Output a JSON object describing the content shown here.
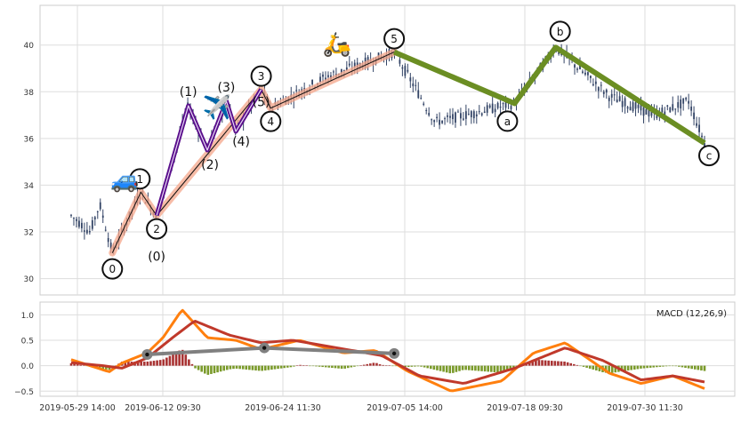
{
  "chart_data": [
    {
      "type": "candlestick",
      "panel": "price",
      "ylim": [
        29.3,
        41.7
      ],
      "yticks": [
        30,
        32,
        34,
        36,
        38,
        40
      ],
      "grid": true,
      "x_ticks": [
        "2019-05-29 14:00",
        "2019-06-12 09:30",
        "2019-06-24 11:30",
        "2019-07-05 14:00",
        "2019-07-18 09:30",
        "2019-07-30 11:30"
      ],
      "price_anchors": [
        {
          "t": 0.0,
          "y": 32.7
        },
        {
          "t": 0.03,
          "y": 32.0
        },
        {
          "t": 0.045,
          "y": 33.2
        },
        {
          "t": 0.065,
          "y": 31.1
        },
        {
          "t": 0.11,
          "y": 33.7
        },
        {
          "t": 0.135,
          "y": 32.7
        },
        {
          "t": 0.185,
          "y": 37.4
        },
        {
          "t": 0.215,
          "y": 35.5
        },
        {
          "t": 0.245,
          "y": 37.6
        },
        {
          "t": 0.26,
          "y": 36.3
        },
        {
          "t": 0.3,
          "y": 38.1
        },
        {
          "t": 0.315,
          "y": 37.3
        },
        {
          "t": 0.4,
          "y": 38.6
        },
        {
          "t": 0.51,
          "y": 39.7
        },
        {
          "t": 0.575,
          "y": 36.7
        },
        {
          "t": 0.7,
          "y": 37.5
        },
        {
          "t": 0.765,
          "y": 39.9
        },
        {
          "t": 0.85,
          "y": 37.8
        },
        {
          "t": 0.92,
          "y": 37.0
        },
        {
          "t": 0.975,
          "y": 37.6
        },
        {
          "t": 1.0,
          "y": 35.8
        }
      ],
      "wave_main": {
        "labels": [
          "0",
          "1",
          "2",
          "3",
          "4",
          "5"
        ],
        "points": [
          [
            0.065,
            31.1
          ],
          [
            0.11,
            33.7
          ],
          [
            0.135,
            32.7
          ],
          [
            0.3,
            38.1
          ],
          [
            0.315,
            37.3
          ],
          [
            0.51,
            39.7
          ]
        ],
        "color": "#f4a58a"
      },
      "wave_sub": {
        "labels": [
          "(0)",
          "(1)",
          "(2)",
          "(3)",
          "(4)",
          "(5)"
        ],
        "points": [
          [
            0.135,
            32.7
          ],
          [
            0.185,
            37.4
          ],
          [
            0.215,
            35.5
          ],
          [
            0.245,
            37.6
          ],
          [
            0.26,
            36.3
          ],
          [
            0.3,
            38.1
          ]
        ],
        "color": "#5a0f8c"
      },
      "wave_correction": {
        "labels": [
          "a",
          "b",
          "c"
        ],
        "points": [
          [
            0.51,
            39.7
          ],
          [
            0.7,
            37.5
          ],
          [
            0.765,
            39.9
          ],
          [
            1.0,
            35.8
          ]
        ],
        "color": "#6b8e23"
      },
      "emojis": [
        {
          "icon": "car-icon",
          "glyph": "🚙",
          "t": 0.085,
          "y": 33.9
        },
        {
          "icon": "airplane-icon",
          "glyph": "✈️",
          "t": 0.23,
          "y": 37.0
        },
        {
          "icon": "scooter-icon",
          "glyph": "🛵",
          "t": 0.42,
          "y": 39.7
        }
      ],
      "colors": {
        "candle": "#334466"
      }
    },
    {
      "type": "macd",
      "panel": "indicator",
      "legend_text": "MACD (12,26,9)",
      "ylim": [
        -0.6,
        1.25
      ],
      "yticks": [
        -0.5,
        0.0,
        0.5,
        1.0
      ],
      "ytick_labels": [
        "−0.5",
        "0.0",
        "0.5",
        "1.0"
      ],
      "macd_anchors": [
        {
          "t": 0.0,
          "y": 0.12
        },
        {
          "t": 0.03,
          "y": 0.0
        },
        {
          "t": 0.06,
          "y": -0.12
        },
        {
          "t": 0.08,
          "y": 0.05
        },
        {
          "t": 0.12,
          "y": 0.25
        },
        {
          "t": 0.145,
          "y": 0.55
        },
        {
          "t": 0.175,
          "y": 1.1
        },
        {
          "t": 0.215,
          "y": 0.55
        },
        {
          "t": 0.26,
          "y": 0.5
        },
        {
          "t": 0.3,
          "y": 0.32
        },
        {
          "t": 0.36,
          "y": 0.5
        },
        {
          "t": 0.43,
          "y": 0.25
        },
        {
          "t": 0.48,
          "y": 0.3
        },
        {
          "t": 0.53,
          "y": -0.1
        },
        {
          "t": 0.6,
          "y": -0.5
        },
        {
          "t": 0.68,
          "y": -0.3
        },
        {
          "t": 0.73,
          "y": 0.25
        },
        {
          "t": 0.78,
          "y": 0.45
        },
        {
          "t": 0.85,
          "y": -0.15
        },
        {
          "t": 0.9,
          "y": -0.35
        },
        {
          "t": 0.95,
          "y": -0.2
        },
        {
          "t": 1.0,
          "y": -0.45
        }
      ],
      "signal_anchors": [
        {
          "t": 0.0,
          "y": 0.06
        },
        {
          "t": 0.05,
          "y": 0.0
        },
        {
          "t": 0.08,
          "y": -0.05
        },
        {
          "t": 0.12,
          "y": 0.15
        },
        {
          "t": 0.16,
          "y": 0.55
        },
        {
          "t": 0.195,
          "y": 0.88
        },
        {
          "t": 0.25,
          "y": 0.6
        },
        {
          "t": 0.3,
          "y": 0.45
        },
        {
          "t": 0.35,
          "y": 0.5
        },
        {
          "t": 0.42,
          "y": 0.35
        },
        {
          "t": 0.49,
          "y": 0.2
        },
        {
          "t": 0.55,
          "y": -0.2
        },
        {
          "t": 0.62,
          "y": -0.35
        },
        {
          "t": 0.7,
          "y": -0.05
        },
        {
          "t": 0.78,
          "y": 0.35
        },
        {
          "t": 0.84,
          "y": 0.1
        },
        {
          "t": 0.9,
          "y": -0.28
        },
        {
          "t": 0.95,
          "y": -0.2
        },
        {
          "t": 1.0,
          "y": -0.32
        }
      ],
      "overlay_points": [
        [
          0.12,
          0.22
        ],
        [
          0.305,
          0.35
        ],
        [
          0.51,
          0.24
        ]
      ],
      "colors": {
        "macd": "#ff7f0e",
        "signal": "#c0392b",
        "hist_pos": "#a83232",
        "hist_neg": "#7a9a2a",
        "overlay": "#808080"
      }
    }
  ]
}
